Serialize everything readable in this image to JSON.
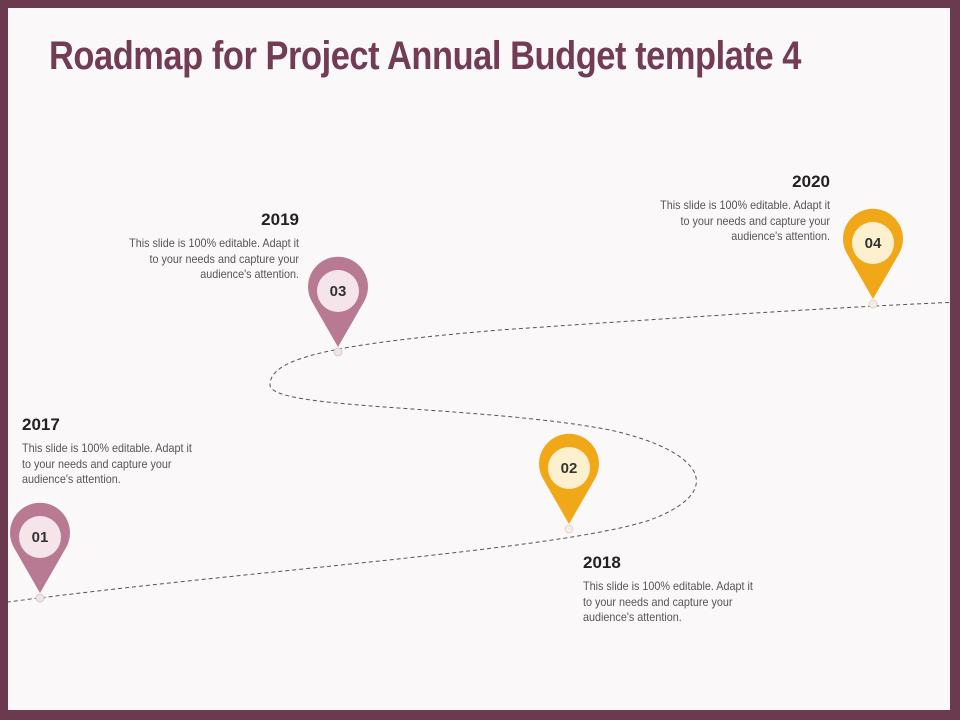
{
  "title": "Roadmap for Project Annual Budget template 4",
  "milestones": [
    {
      "number": "01",
      "year": "2017",
      "text": "This slide is 100% editable. Adapt it to your needs and capture your audience's attention."
    },
    {
      "number": "02",
      "year": "2018",
      "text": "This slide is 100% editable. Adapt it to your needs and capture your audience's attention."
    },
    {
      "number": "03",
      "year": "2019",
      "text": "This slide is 100% editable. Adapt it to your needs and capture your audience's attention."
    },
    {
      "number": "04",
      "year": "2020",
      "text": "This slide is 100% editable. Adapt it to your needs and capture your audience's attention."
    }
  ],
  "colors": {
    "frame": "#6b3a4e",
    "title": "#733c55",
    "pin_mauve": "#b87a92",
    "pin_mauve_inner": "#f5e4ea",
    "pin_gold": "#f0a818",
    "pin_gold_inner": "#fdf0cf"
  },
  "icons": [
    "location-pin-icon"
  ]
}
